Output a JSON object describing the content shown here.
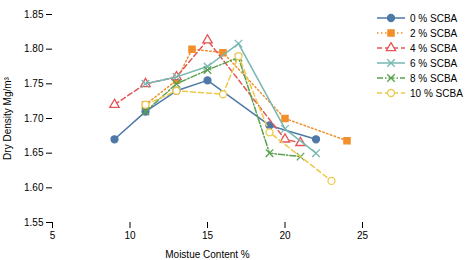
{
  "chart_data": {
    "type": "line",
    "xlabel": "Moistue Content %",
    "ylabel": "Dry Density Mg/m³",
    "xlim": [
      5,
      25
    ],
    "ylim": [
      1.55,
      1.85
    ],
    "xticks": [
      5,
      10,
      15,
      20,
      25
    ],
    "yticks": [
      1.55,
      {
        "value": 1.6,
        "label": "1.60"
      },
      1.65,
      {
        "value": 1.7,
        "label": "1.70"
      },
      1.75,
      {
        "value": 1.8,
        "label": "1.80"
      },
      1.85
    ],
    "grid": false,
    "legend": "upper right",
    "series": [
      {
        "name": "0 % SCBA",
        "x": [
          9,
          11,
          13,
          15,
          19,
          22
        ],
        "values": [
          1.67,
          1.71,
          1.74,
          1.755,
          1.69,
          1.67
        ],
        "marker": "circle",
        "line_style": "solid"
      },
      {
        "name": "2 % SCBA",
        "x": [
          11,
          13,
          14,
          16,
          20,
          24
        ],
        "values": [
          1.72,
          1.755,
          1.8,
          1.795,
          1.7,
          1.668
        ],
        "marker": "square",
        "line_style": "dotted"
      },
      {
        "name": "4 % SCBA",
        "x": [
          9,
          11,
          13,
          15,
          20,
          21
        ],
        "values": [
          1.72,
          1.75,
          1.76,
          1.813,
          1.67,
          1.665
        ],
        "marker": "triangle-open",
        "line_style": "dashed"
      },
      {
        "name": "6 % SCBA",
        "x": [
          11,
          13,
          15,
          17,
          20,
          22
        ],
        "values": [
          1.75,
          1.76,
          1.775,
          1.808,
          1.685,
          1.65
        ],
        "marker": "x",
        "line_style": "solid"
      },
      {
        "name": "8 % SCBA",
        "x": [
          11,
          13,
          15,
          17,
          19,
          21
        ],
        "values": [
          1.71,
          1.75,
          1.77,
          1.788,
          1.65,
          1.645
        ],
        "marker": "x",
        "line_style": "dashdot"
      },
      {
        "name": "10 % SCBA",
        "x": [
          11,
          13,
          16,
          17,
          19,
          23
        ],
        "values": [
          1.72,
          1.74,
          1.735,
          1.79,
          1.68,
          1.61
        ],
        "marker": "circle-open",
        "line_style": "dashed"
      }
    ]
  }
}
